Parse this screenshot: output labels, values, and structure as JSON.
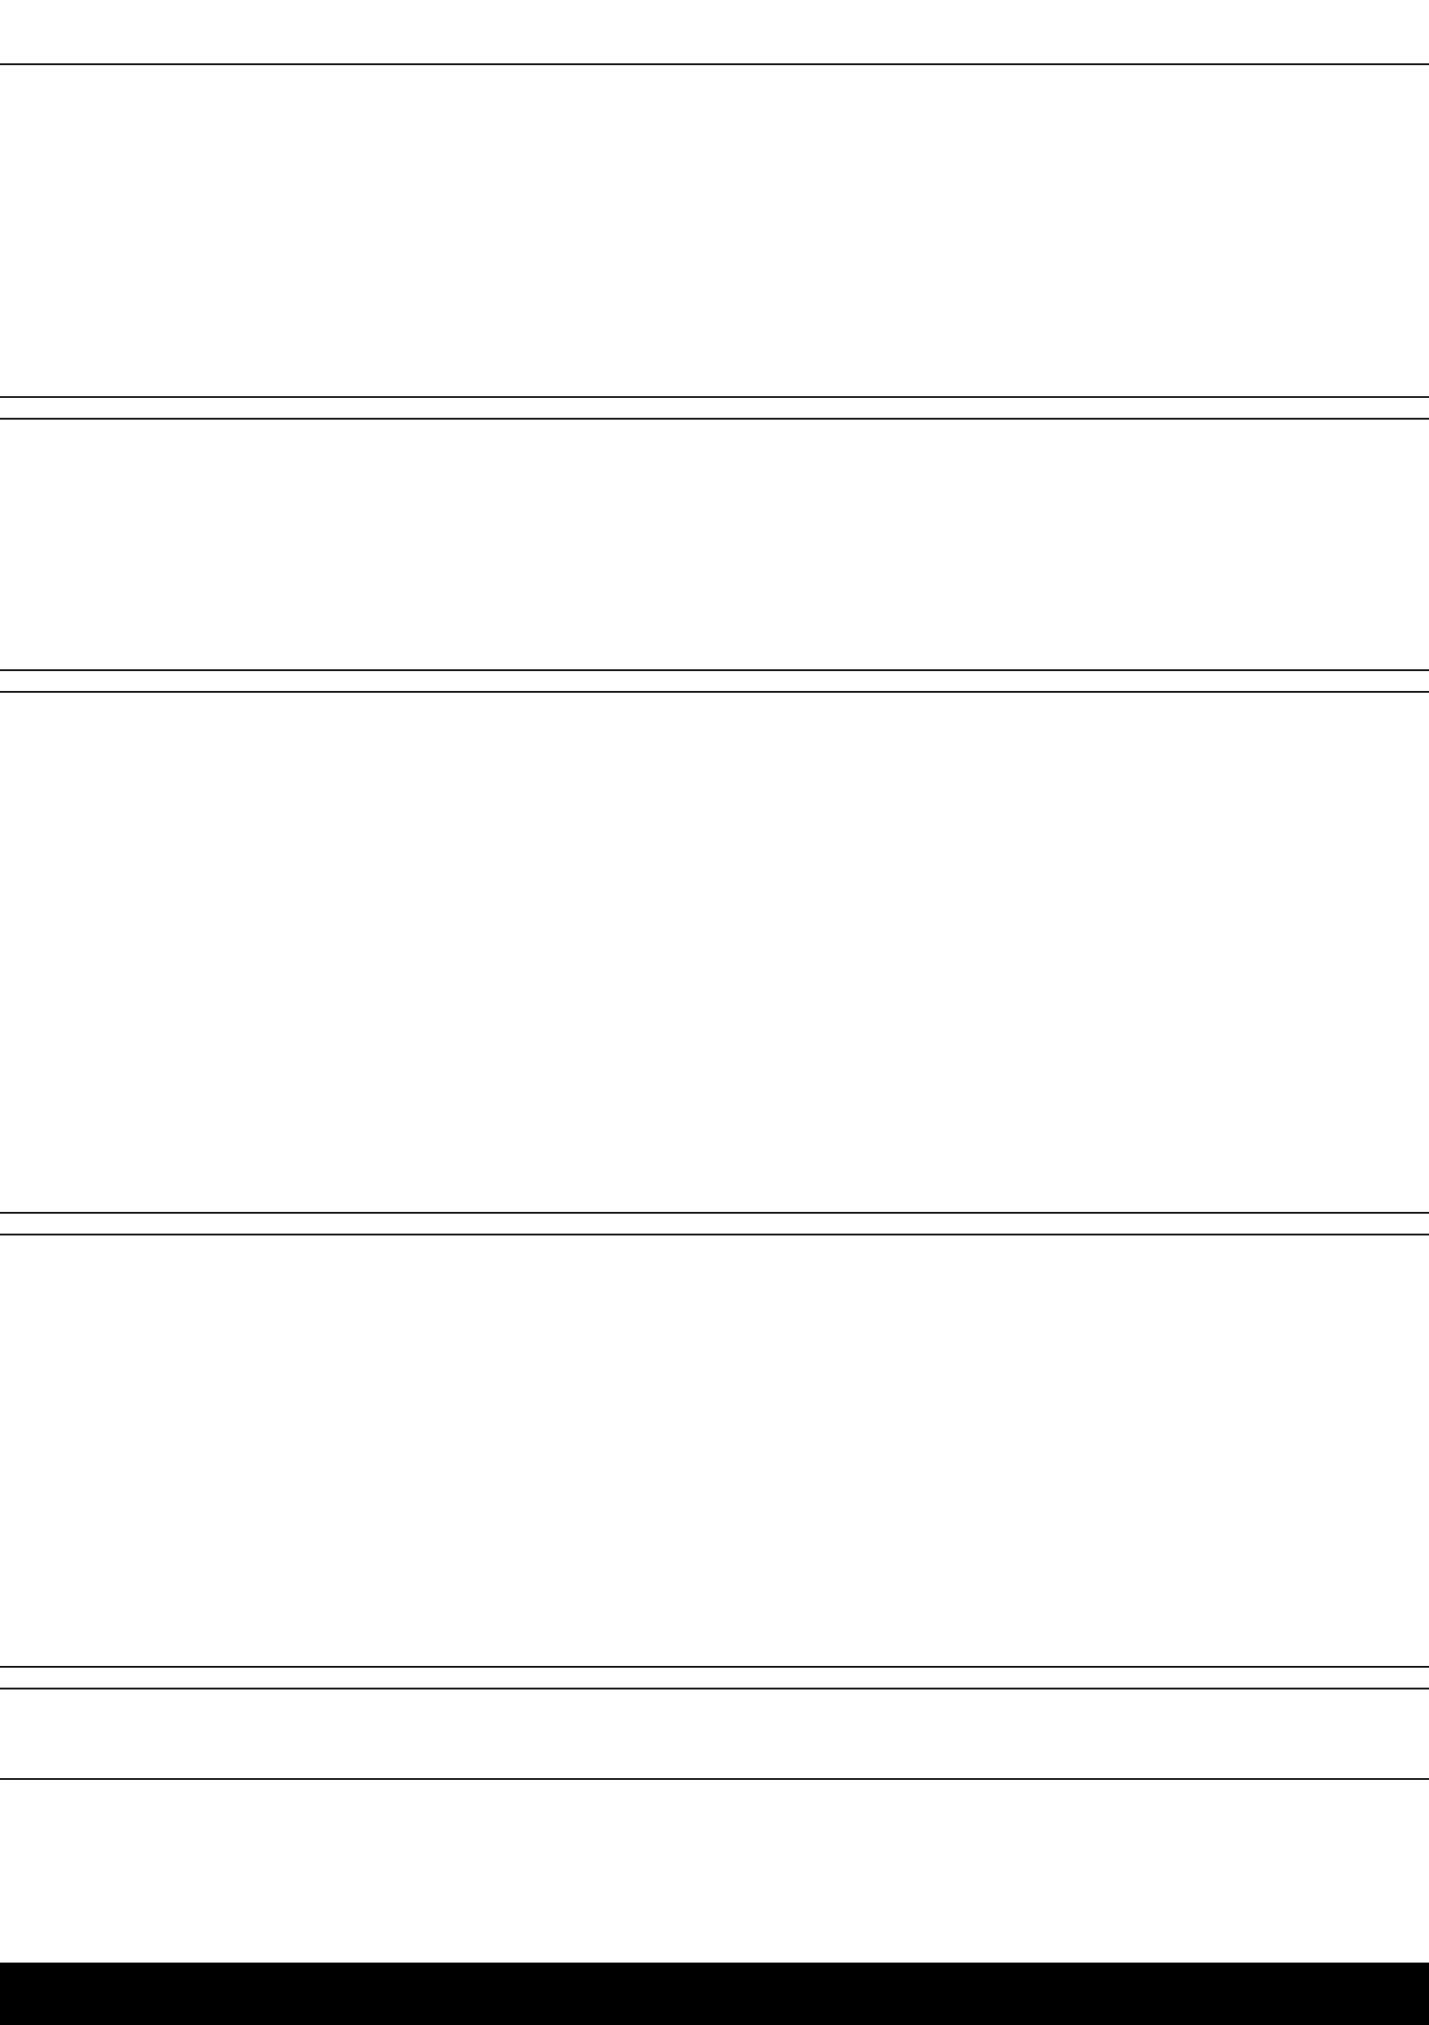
{
  "blocks": [
    {
      "lines": 0
    },
    {
      "lines": 0
    },
    {
      "lines": 0
    },
    {
      "lines": 0
    },
    {
      "lines": 0
    }
  ]
}
